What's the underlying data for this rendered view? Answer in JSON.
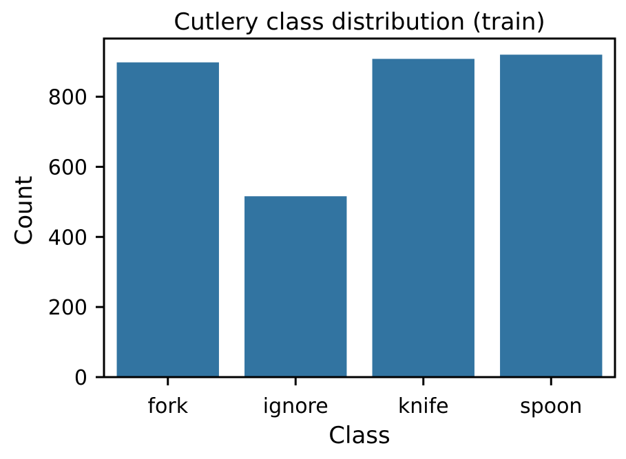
{
  "chart_data": {
    "type": "bar",
    "title": "Cutlery class distribution (train)",
    "xlabel": "Class",
    "ylabel": "Count",
    "categories": [
      "fork",
      "ignore",
      "knife",
      "spoon"
    ],
    "values": [
      898,
      516,
      908,
      920
    ],
    "ylim": [
      0,
      966
    ],
    "yticks": [
      0,
      200,
      400,
      600,
      800
    ],
    "bar_color": "#3274a1",
    "grid": false,
    "legend": "none"
  }
}
